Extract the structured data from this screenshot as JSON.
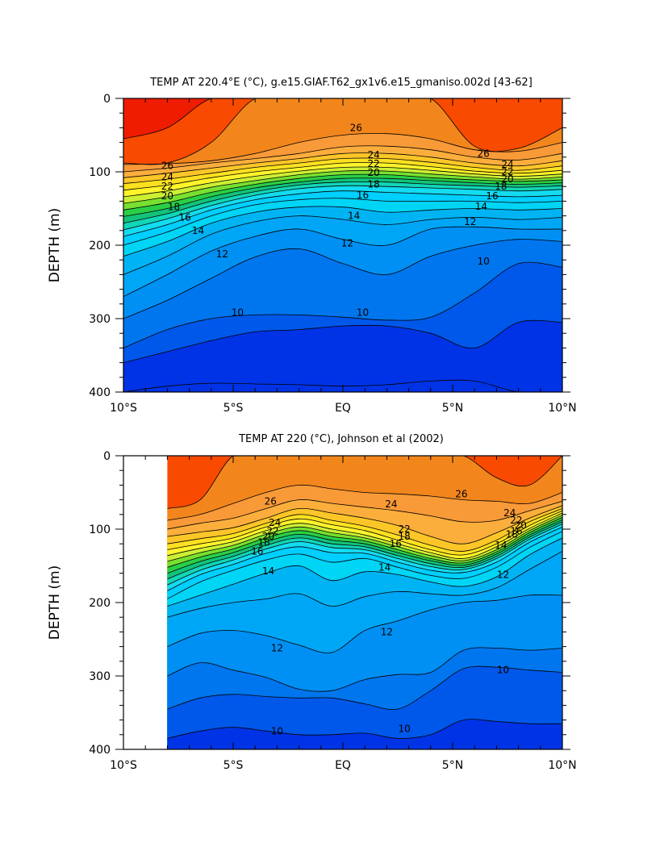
{
  "chart_data": [
    {
      "type": "contour",
      "title": "TEMP AT 220.4°E (°C), g.e15.GIAF.T62_gx1v6.e15_gmaniso.002d [43-62]",
      "xlabel": "",
      "ylabel": "DEPTH (m)",
      "xlim": [
        -10,
        10
      ],
      "ylim": [
        400,
        0
      ],
      "x_ticks": [
        -10,
        -5,
        0,
        5,
        10
      ],
      "x_tick_labels": [
        "10°S",
        "5°S",
        "EQ",
        "5°N",
        "10°N"
      ],
      "y_ticks": [
        0,
        100,
        200,
        300,
        400
      ],
      "y_tick_labels": [
        "0",
        "100",
        "200",
        "300",
        "400"
      ],
      "x_start": -10,
      "contour_interval": 1,
      "isotherms": [
        {
          "t": 29,
          "d": [
            55,
            40,
            0,
            0,
            0,
            0,
            0,
            0,
            0,
            0,
            0
          ]
        },
        {
          "t": 28,
          "d": [
            88,
            88,
            60,
            0,
            0,
            0,
            0,
            0,
            65,
            68,
            40
          ]
        },
        {
          "t": 27,
          "d": [
            90,
            89,
            85,
            75,
            60,
            50,
            48,
            55,
            70,
            72,
            60
          ]
        },
        {
          "t": 26,
          "d": [
            100,
            95,
            88,
            82,
            75,
            66,
            65,
            70,
            80,
            84,
            75
          ]
        },
        {
          "t": 25,
          "d": [
            108,
            102,
            95,
            88,
            82,
            75,
            75,
            80,
            88,
            92,
            85
          ]
        },
        {
          "t": 24,
          "d": [
            116,
            110,
            102,
            94,
            88,
            82,
            82,
            87,
            94,
            98,
            92
          ]
        },
        {
          "t": 23,
          "d": [
            125,
            118,
            108,
            100,
            94,
            88,
            88,
            93,
            99,
            102,
            98
          ]
        },
        {
          "t": 22,
          "d": [
            134,
            126,
            115,
            106,
            99,
            94,
            94,
            98,
            103,
            106,
            103
          ]
        },
        {
          "t": 21,
          "d": [
            143,
            134,
            121,
            112,
            104,
            99,
            99,
            103,
            107,
            110,
            107
          ]
        },
        {
          "t": 20,
          "d": [
            152,
            142,
            128,
            117,
            109,
            104,
            104,
            108,
            111,
            113,
            111
          ]
        },
        {
          "t": 19,
          "d": [
            161,
            150,
            134,
            122,
            114,
            109,
            109,
            112,
            115,
            117,
            115
          ]
        },
        {
          "t": 18,
          "d": [
            170,
            157,
            140,
            127,
            118,
            114,
            114,
            117,
            119,
            121,
            119
          ]
        },
        {
          "t": 17,
          "d": [
            179,
            164,
            146,
            132,
            123,
            119,
            120,
            122,
            124,
            126,
            124
          ]
        },
        {
          "t": 16,
          "d": [
            188,
            172,
            152,
            138,
            130,
            126,
            128,
            130,
            132,
            134,
            132
          ]
        },
        {
          "t": 15,
          "d": [
            200,
            182,
            160,
            145,
            138,
            136,
            140,
            140,
            140,
            142,
            140
          ]
        },
        {
          "t": 14,
          "d": [
            215,
            195,
            170,
            155,
            148,
            148,
            155,
            152,
            150,
            152,
            150
          ]
        },
        {
          "t": 13,
          "d": [
            240,
            215,
            185,
            168,
            160,
            165,
            172,
            165,
            162,
            165,
            162
          ]
        },
        {
          "t": 12,
          "d": [
            270,
            240,
            208,
            188,
            178,
            192,
            200,
            178,
            175,
            178,
            178
          ]
        },
        {
          "t": 11,
          "d": [
            300,
            275,
            245,
            216,
            205,
            225,
            240,
            215,
            200,
            192,
            195
          ]
        },
        {
          "t": 10,
          "d": [
            340,
            315,
            300,
            295,
            295,
            298,
            302,
            298,
            265,
            225,
            230
          ]
        },
        {
          "t": 9,
          "d": [
            360,
            345,
            330,
            318,
            315,
            310,
            310,
            320,
            340,
            305,
            305
          ]
        },
        {
          "t": 8,
          "d": [
            400,
            392,
            388,
            389,
            390,
            392,
            390,
            385,
            385,
            400,
            400
          ]
        }
      ],
      "labels": [
        {
          "text": "26",
          "x": 0.6,
          "d": 40
        },
        {
          "text": "26",
          "x": -8.0,
          "d": 92
        },
        {
          "text": "24",
          "x": -8.0,
          "d": 107
        },
        {
          "text": "22",
          "x": -8.0,
          "d": 120
        },
        {
          "text": "20",
          "x": -8.0,
          "d": 133
        },
        {
          "text": "18",
          "x": -7.7,
          "d": 148
        },
        {
          "text": "16",
          "x": -7.2,
          "d": 162
        },
        {
          "text": "14",
          "x": -6.6,
          "d": 180
        },
        {
          "text": "12",
          "x": -5.5,
          "d": 212
        },
        {
          "text": "10",
          "x": -4.8,
          "d": 292
        },
        {
          "text": "24",
          "x": 1.4,
          "d": 77
        },
        {
          "text": "22",
          "x": 1.4,
          "d": 89
        },
        {
          "text": "20",
          "x": 1.4,
          "d": 101
        },
        {
          "text": "18",
          "x": 1.4,
          "d": 117
        },
        {
          "text": "16",
          "x": 0.9,
          "d": 132
        },
        {
          "text": "14",
          "x": 0.5,
          "d": 160
        },
        {
          "text": "12",
          "x": 0.2,
          "d": 197
        },
        {
          "text": "10",
          "x": 0.9,
          "d": 292
        },
        {
          "text": "26",
          "x": 6.4,
          "d": 75
        },
        {
          "text": "24",
          "x": 7.5,
          "d": 90
        },
        {
          "text": "22",
          "x": 7.5,
          "d": 100
        },
        {
          "text": "20",
          "x": 7.5,
          "d": 110
        },
        {
          "text": "18",
          "x": 7.2,
          "d": 120
        },
        {
          "text": "16",
          "x": 6.8,
          "d": 133
        },
        {
          "text": "14",
          "x": 6.3,
          "d": 147
        },
        {
          "text": "12",
          "x": 5.8,
          "d": 168
        },
        {
          "text": "10",
          "x": 6.4,
          "d": 222
        }
      ]
    },
    {
      "type": "contour",
      "title": "TEMP AT 220 (°C), Johnson et al (2002)",
      "xlabel": "",
      "ylabel": "DEPTH (m)",
      "xlim": [
        -10,
        10
      ],
      "ylim": [
        400,
        0
      ],
      "x_ticks": [
        -10,
        -5,
        0,
        5,
        10
      ],
      "x_tick_labels": [
        "10°S",
        "5°S",
        "EQ",
        "5°N",
        "10°N"
      ],
      "y_ticks": [
        0,
        100,
        200,
        300,
        400
      ],
      "y_tick_labels": [
        "0",
        "100",
        "200",
        "300",
        "400"
      ],
      "x_start": -8,
      "contour_interval": 1,
      "isotherms": [
        {
          "t": 28,
          "d": [
            72,
            60,
            0,
            0,
            0,
            0,
            0,
            0,
            0,
            0,
            30,
            40,
            0
          ]
        },
        {
          "t": 27,
          "d": [
            88,
            80,
            65,
            50,
            40,
            45,
            50,
            52,
            55,
            60,
            62,
            65,
            50
          ]
        },
        {
          "t": 26,
          "d": [
            100,
            92,
            85,
            72,
            60,
            65,
            70,
            75,
            82,
            90,
            88,
            75,
            62
          ]
        },
        {
          "t": 25,
          "d": [
            110,
            104,
            98,
            85,
            72,
            78,
            85,
            95,
            110,
            120,
            105,
            85,
            68
          ]
        },
        {
          "t": 24,
          "d": [
            120,
            113,
            106,
            92,
            80,
            88,
            96,
            108,
            122,
            130,
            115,
            90,
            72
          ]
        },
        {
          "t": 23,
          "d": [
            128,
            120,
            112,
            97,
            86,
            94,
            102,
            115,
            128,
            135,
            120,
            95,
            75
          ]
        },
        {
          "t": 22,
          "d": [
            136,
            126,
            117,
            102,
            92,
            100,
            108,
            120,
            132,
            140,
            124,
            99,
            78
          ]
        },
        {
          "t": 21,
          "d": [
            144,
            132,
            122,
            107,
            97,
            105,
            112,
            124,
            136,
            143,
            128,
            102,
            81
          ]
        },
        {
          "t": 20,
          "d": [
            152,
            138,
            127,
            112,
            102,
            110,
            116,
            128,
            140,
            146,
            131,
            105,
            84
          ]
        },
        {
          "t": 19,
          "d": [
            160,
            144,
            132,
            117,
            107,
            115,
            120,
            132,
            143,
            149,
            134,
            108,
            87
          ]
        },
        {
          "t": 18,
          "d": [
            168,
            150,
            137,
            122,
            112,
            120,
            124,
            136,
            147,
            152,
            137,
            111,
            90
          ]
        },
        {
          "t": 17,
          "d": [
            176,
            156,
            142,
            127,
            117,
            125,
            128,
            140,
            151,
            155,
            140,
            114,
            93
          ]
        },
        {
          "t": 16,
          "d": [
            184,
            162,
            148,
            133,
            124,
            132,
            133,
            145,
            156,
            159,
            145,
            118,
            97
          ]
        },
        {
          "t": 15,
          "d": [
            195,
            172,
            156,
            142,
            134,
            145,
            140,
            152,
            163,
            167,
            152,
            125,
            103
          ]
        },
        {
          "t": 14,
          "d": [
            205,
            190,
            175,
            160,
            150,
            170,
            158,
            162,
            172,
            178,
            165,
            135,
            112
          ]
        },
        {
          "t": 13,
          "d": [
            220,
            208,
            200,
            195,
            188,
            205,
            192,
            185,
            188,
            190,
            180,
            155,
            130
          ]
        },
        {
          "t": 12,
          "d": [
            260,
            242,
            238,
            245,
            258,
            268,
            238,
            225,
            210,
            200,
            197,
            190,
            190
          ]
        },
        {
          "t": 11,
          "d": [
            300,
            282,
            292,
            302,
            318,
            320,
            305,
            298,
            295,
            265,
            262,
            265,
            262
          ]
        },
        {
          "t": 10,
          "d": [
            345,
            330,
            325,
            328,
            330,
            330,
            338,
            345,
            320,
            290,
            288,
            292,
            295
          ]
        },
        {
          "t": 9,
          "d": [
            385,
            375,
            370,
            375,
            380,
            380,
            378,
            385,
            380,
            360,
            362,
            365,
            365
          ]
        },
        {
          "t": 8,
          "d": [
            400,
            400,
            400,
            400,
            400,
            400,
            400,
            400,
            400,
            400,
            400,
            400,
            400
          ]
        }
      ],
      "labels": [
        {
          "text": "26",
          "x": -3.3,
          "d": 62
        },
        {
          "text": "24",
          "x": -3.1,
          "d": 91
        },
        {
          "text": "22",
          "x": -3.2,
          "d": 103
        },
        {
          "text": "20",
          "x": -3.4,
          "d": 110
        },
        {
          "text": "18",
          "x": -3.6,
          "d": 118
        },
        {
          "text": "16",
          "x": -3.9,
          "d": 130
        },
        {
          "text": "14",
          "x": -3.4,
          "d": 157
        },
        {
          "text": "12",
          "x": -3.0,
          "d": 262
        },
        {
          "text": "10",
          "x": -3.0,
          "d": 375
        },
        {
          "text": "24",
          "x": 2.2,
          "d": 66
        },
        {
          "text": "22",
          "x": 2.8,
          "d": 100
        },
        {
          "text": "18",
          "x": 2.8,
          "d": 110
        },
        {
          "text": "16",
          "x": 2.4,
          "d": 120
        },
        {
          "text": "14",
          "x": 1.9,
          "d": 152
        },
        {
          "text": "12",
          "x": 2.0,
          "d": 240
        },
        {
          "text": "10",
          "x": 2.8,
          "d": 372
        },
        {
          "text": "26",
          "x": 5.4,
          "d": 52
        },
        {
          "text": "24",
          "x": 7.6,
          "d": 78
        },
        {
          "text": "22",
          "x": 7.9,
          "d": 88
        },
        {
          "text": "20",
          "x": 8.1,
          "d": 95
        },
        {
          "text": "18",
          "x": 7.7,
          "d": 107
        },
        {
          "text": "16",
          "x": 7.9,
          "d": 103
        },
        {
          "text": "14",
          "x": 7.2,
          "d": 122
        },
        {
          "text": "12",
          "x": 7.3,
          "d": 162
        },
        {
          "text": "10",
          "x": 7.3,
          "d": 292
        }
      ]
    }
  ],
  "colors": {
    "29": "#f01c00",
    "28": "#f84a00",
    "27": "#f2861c",
    "26": "#f99a38",
    "25": "#fcae3c",
    "24": "#fdc628",
    "23": "#fde020",
    "22": "#fff42a",
    "21": "#ccef33",
    "20": "#78e030",
    "19": "#2acf46",
    "18": "#12c37a",
    "17": "#12d6b8",
    "16": "#14dcf0",
    "15": "#00cfff",
    "14": "#00d5f6",
    "13": "#00b4f4",
    "12": "#00a6f6",
    "11": "#0090f4",
    "10": "#0076ee",
    "9": "#0058ea",
    "8": "#0033e6"
  }
}
